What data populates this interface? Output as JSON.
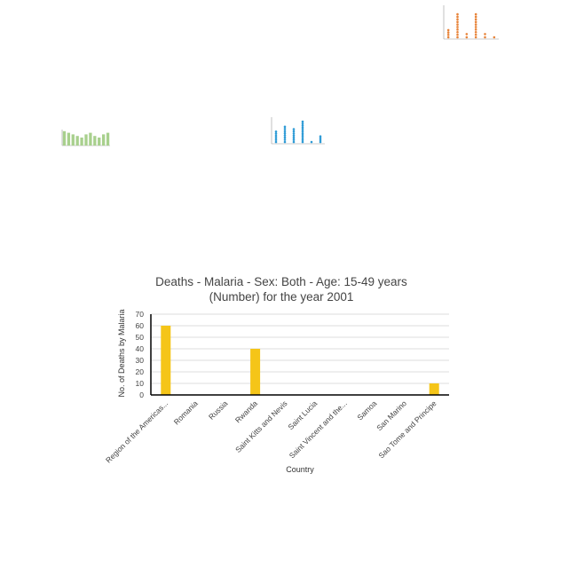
{
  "chart_data": [
    {
      "type": "bar",
      "title_lines": [
        "Deaths - Malaria - Sex: Both - Age: 15-49 years",
        "(Number) for the year 2001"
      ],
      "xlabel": "Country",
      "ylabel": "No. of Deaths by Malaria",
      "categories": [
        "Region of the Americas...",
        "Romania",
        "Russia",
        "Rwanda",
        "Saint Kitts and Nevis",
        "Saint Lucia",
        "Saint Vincent and the...",
        "Samoa",
        "San Marino",
        "Sao Tome and Principe"
      ],
      "values": [
        60,
        0,
        0,
        40,
        0,
        0,
        0,
        0,
        0,
        10
      ],
      "yticks": [
        0,
        10,
        20,
        30,
        40,
        50,
        60,
        70
      ],
      "ylim": [
        0,
        70
      ],
      "grid": true,
      "color": "#f5c518"
    },
    {
      "type": "scatter",
      "categories": [
        "",
        "",
        "",
        "",
        "",
        ""
      ],
      "values": [
        3,
        8,
        2,
        8,
        2,
        1
      ],
      "ylim": [
        0,
        10
      ],
      "color": "#e8843a"
    },
    {
      "type": "bar",
      "values": [
        9,
        8,
        7,
        6,
        5,
        7,
        8,
        6,
        5,
        7,
        8
      ],
      "ylim": [
        0,
        10
      ],
      "color": "#a8d08d"
    },
    {
      "type": "scatter",
      "values": [
        5,
        7,
        6,
        9,
        1,
        3
      ],
      "ylim": [
        0,
        10
      ],
      "color": "#2e9bd6"
    }
  ]
}
